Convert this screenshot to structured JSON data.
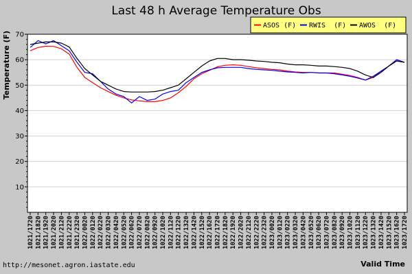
{
  "chart_data": {
    "type": "line",
    "title": "Last 48 h Average Temperature Obs",
    "ylabel": "Temperature (F)",
    "xlabel": "Valid Time",
    "ylim": [
      0,
      70
    ],
    "yticks": [
      10,
      20,
      30,
      40,
      50,
      60,
      70
    ],
    "grid": true,
    "legend_position": "top-right",
    "categories": [
      "1021/1720",
      "1021/1820",
      "1021/1920",
      "1021/2020",
      "1021/2120",
      "1021/2220",
      "1021/2320",
      "1022/0020",
      "1022/0120",
      "1022/0220",
      "1022/0320",
      "1022/0420",
      "1022/0520",
      "1022/0620",
      "1022/0720",
      "1022/0820",
      "1022/0920",
      "1022/1020",
      "1022/1120",
      "1022/1220",
      "1022/1320",
      "1022/1420",
      "1022/1520",
      "1022/1620",
      "1022/1720",
      "1022/1820",
      "1022/1920",
      "1022/2020",
      "1022/2120",
      "1022/2220",
      "1022/2320",
      "1023/0020",
      "1023/0120",
      "1023/0220",
      "1023/0320",
      "1023/0420",
      "1023/0520",
      "1023/0620",
      "1023/0720",
      "1023/0820",
      "1023/0920",
      "1023/1020",
      "1023/1120",
      "1023/1220",
      "1023/1320",
      "1023/1420",
      "1023/1520",
      "1023/1620",
      "1023/1720"
    ],
    "series": [
      {
        "name": "ASOS (F)",
        "color": "#ff0000",
        "values": [
          63.5,
          64.8,
          65.3,
          65.2,
          64.3,
          62.2,
          57.0,
          53.0,
          51.0,
          49.0,
          47.5,
          46.0,
          45.0,
          44.2,
          43.8,
          43.5,
          43.5,
          44.0,
          45.0,
          47.0,
          49.5,
          52.5,
          54.5,
          55.8,
          57.2,
          57.8,
          58.0,
          57.8,
          57.3,
          56.8,
          56.5,
          56.2,
          56.0,
          55.5,
          55.2,
          55.0,
          55.0,
          54.8,
          54.8,
          54.8,
          54.3,
          53.8,
          53.0,
          52.0,
          53.0,
          55.5,
          57.5,
          59.5,
          59.0
        ]
      },
      {
        "name": "RWIS  (F)",
        "color": "#0000ff",
        "values": [
          64.8,
          67.5,
          66.2,
          67.5,
          65.5,
          63.5,
          59.0,
          55.0,
          54.5,
          51.5,
          48.5,
          46.5,
          45.5,
          43.0,
          45.5,
          44.0,
          44.5,
          46.5,
          47.5,
          48.0,
          51.0,
          53.0,
          55.0,
          56.0,
          56.8,
          57.0,
          57.0,
          57.0,
          56.5,
          56.2,
          56.0,
          55.8,
          55.5,
          55.2,
          55.0,
          54.8,
          55.0,
          54.8,
          54.8,
          54.5,
          54.0,
          53.5,
          52.8,
          52.0,
          53.5,
          55.5,
          57.5,
          60.0,
          59.0
        ]
      },
      {
        "name": "AWOS  (F)",
        "color": "#000000",
        "values": [
          66.0,
          66.5,
          67.0,
          67.0,
          66.5,
          65.0,
          60.5,
          56.5,
          54.0,
          51.5,
          50.0,
          48.5,
          47.5,
          47.3,
          47.3,
          47.3,
          47.5,
          48.0,
          49.0,
          50.0,
          52.5,
          55.0,
          57.5,
          59.5,
          60.5,
          60.5,
          60.0,
          60.0,
          59.8,
          59.5,
          59.3,
          59.0,
          58.8,
          58.3,
          58.0,
          58.0,
          57.8,
          57.5,
          57.5,
          57.3,
          57.0,
          56.5,
          55.5,
          54.0,
          53.0,
          55.0,
          57.5,
          59.5,
          59.0
        ]
      }
    ]
  },
  "footer": {
    "url": "http://mesonet.agron.iastate.edu"
  }
}
